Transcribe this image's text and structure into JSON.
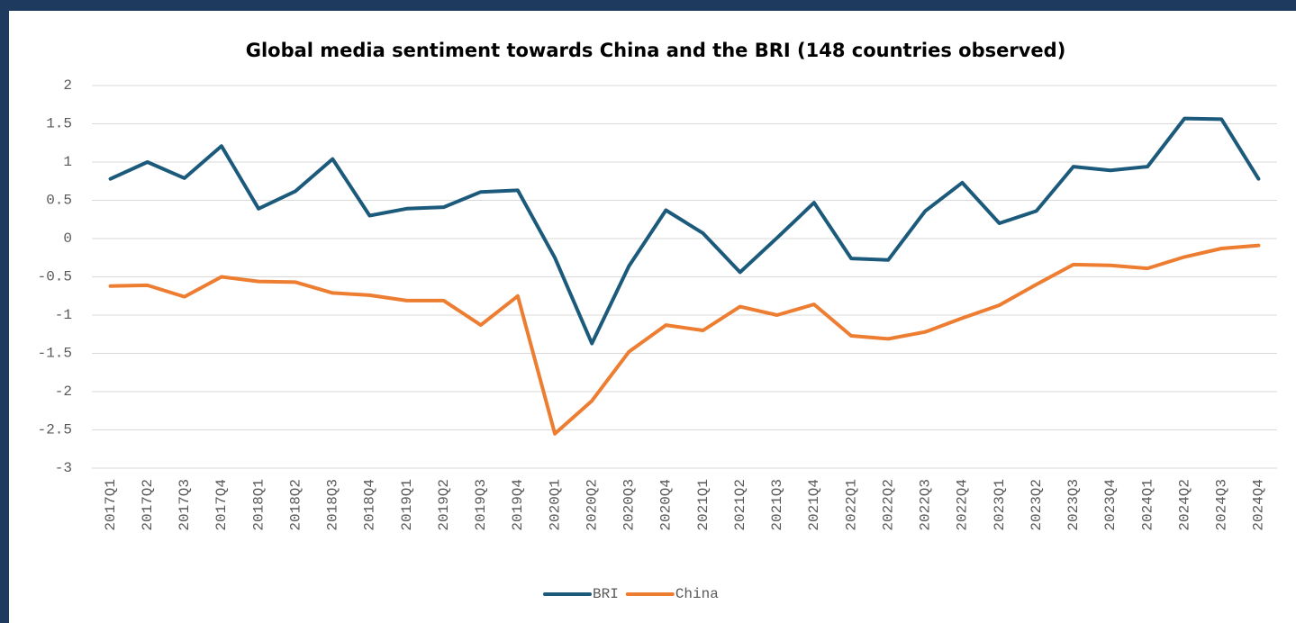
{
  "chart_data": {
    "type": "line",
    "title": "Global media sentiment towards China and the BRI (148 countries observed)",
    "categories": [
      "2017Q1",
      "2017Q2",
      "2017Q3",
      "2017Q4",
      "2018Q1",
      "2018Q2",
      "2018Q3",
      "2018Q4",
      "2019Q1",
      "2019Q2",
      "2019Q3",
      "2019Q4",
      "2020Q1",
      "2020Q2",
      "2020Q3",
      "2020Q4",
      "2021Q1",
      "2021Q2",
      "2021Q3",
      "2021Q4",
      "2022Q1",
      "2022Q2",
      "2022Q3",
      "2022Q4",
      "2023Q1",
      "2023Q2",
      "2023Q3",
      "2023Q4",
      "2024Q1",
      "2024Q2",
      "2024Q3",
      "2024Q4"
    ],
    "series": [
      {
        "name": "BRI",
        "color": "#1c5a7c",
        "values": [
          0.78,
          1.0,
          0.79,
          1.21,
          0.39,
          0.62,
          1.04,
          0.3,
          0.39,
          0.41,
          0.61,
          0.63,
          -0.25,
          -1.37,
          -0.36,
          0.37,
          0.07,
          -0.44,
          0.01,
          0.47,
          -0.26,
          -0.28,
          0.36,
          0.73,
          0.2,
          0.36,
          0.94,
          0.89,
          0.94,
          1.57,
          1.56,
          0.78
        ]
      },
      {
        "name": "China",
        "color": "#ed7d31",
        "values": [
          -0.62,
          -0.61,
          -0.76,
          -0.5,
          -0.56,
          -0.57,
          -0.71,
          -0.74,
          -0.81,
          -0.81,
          -1.13,
          -0.75,
          -2.55,
          -2.12,
          -1.48,
          -1.13,
          -1.2,
          -0.89,
          -1.0,
          -0.86,
          -1.27,
          -1.31,
          -1.22,
          -1.04,
          -0.87,
          -0.6,
          -0.34,
          -0.35,
          -0.39,
          -0.24,
          -0.13,
          -0.09
        ]
      }
    ],
    "ylim": [
      -3,
      2
    ],
    "yticks": [
      -3,
      -2.5,
      -2,
      -1.5,
      -1,
      -0.5,
      0,
      0.5,
      1,
      1.5,
      2
    ],
    "grid": true,
    "legend": "bottom"
  }
}
